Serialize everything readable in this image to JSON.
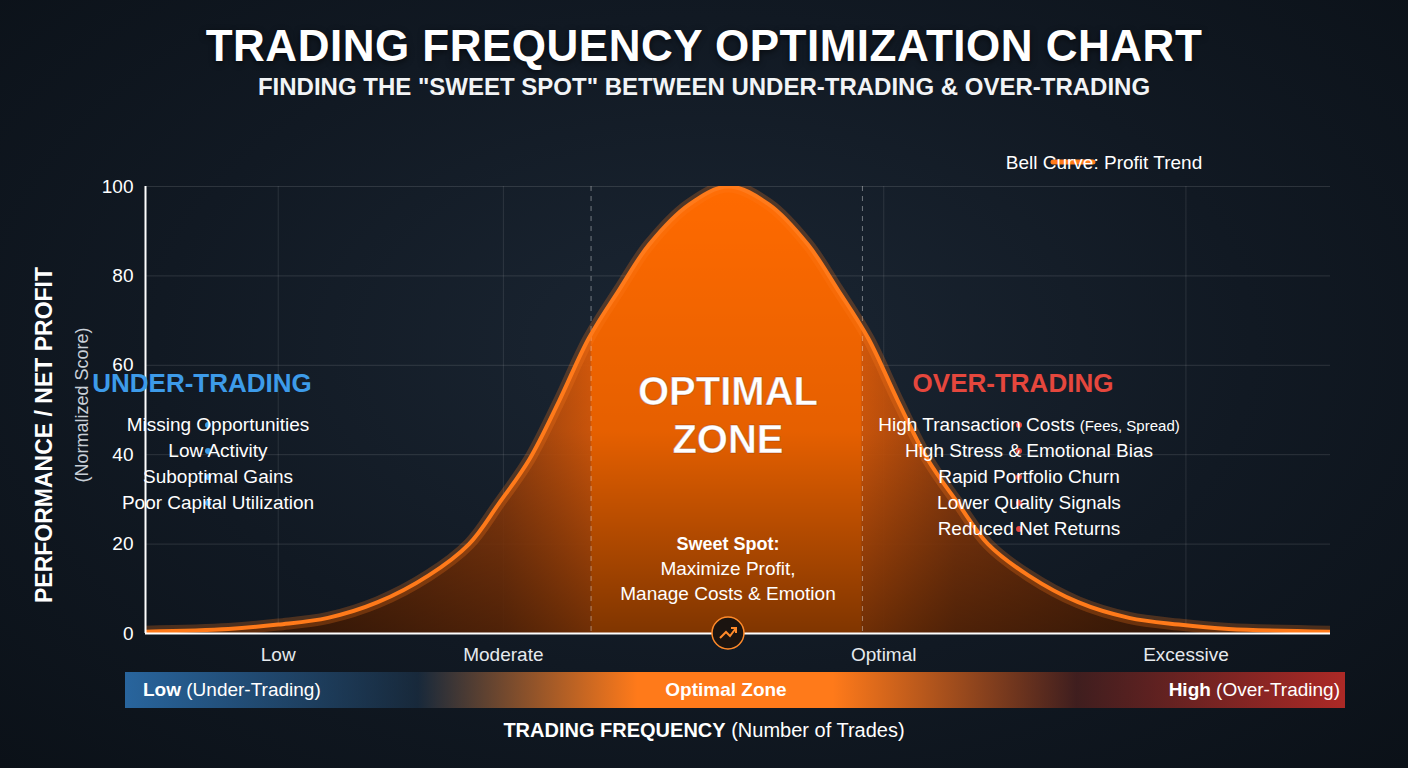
{
  "chart_data": {
    "type": "area",
    "title": "TRADING FREQUENCY OPTIMIZATION CHART",
    "subtitle": "FINDING THE \"SWEET SPOT\" BETWEEN UNDER-TRADING & OVER-TRADING",
    "xlabel": "TRADING FREQUENCY (Number of Trades)",
    "ylabel": "PERFORMANCE / NET PROFIT (Normalized Score)",
    "x": [
      0,
      7.0,
      11.2,
      15.4,
      19.6,
      23.9,
      27.3,
      29.8,
      32.4,
      34.9,
      37.4,
      40.0,
      42.5,
      45.9,
      49.2,
      52.6,
      55.9,
      58.4,
      61.0,
      63.5,
      66.0,
      68.6,
      71.1,
      74.5,
      78.7,
      83.0,
      87.2,
      91.4,
      100
    ],
    "series": [
      {
        "name": "Bell Curve: Profit Trend",
        "color": "#ff7a1a",
        "values": [
          0.4,
          1,
          2,
          3.5,
          7,
          13,
          20,
          29,
          39,
          52,
          66,
          77,
          87,
          96,
          100,
          96,
          87,
          77,
          66,
          52,
          39,
          29,
          20,
          13,
          7,
          3.5,
          2,
          1,
          0.4
        ]
      }
    ],
    "xlim": [
      0,
      100
    ],
    "ylim": [
      0,
      100
    ],
    "xticks": [
      {
        "value": 11.2,
        "label": "Low"
      },
      {
        "value": 30.2,
        "label": "Moderate"
      },
      {
        "value": 62.3,
        "label": "Optimal"
      },
      {
        "value": 87.8,
        "label": "Excessive"
      }
    ],
    "yticks": [
      0,
      20,
      40,
      60,
      80,
      100
    ],
    "grid": true,
    "legend": "top-right",
    "optimal_zone": [
      37.6,
      60.5
    ],
    "annotations": {
      "under": {
        "title": "UNDER-TRADING",
        "color": "#3d9be9",
        "items": [
          "Missing Opportunities",
          "Low Activity",
          "Suboptimal Gains",
          "Poor Capital Utilization"
        ]
      },
      "optimal": {
        "title": "OPTIMAL ZONE",
        "note_title": "Sweet Spot:",
        "note": "Maximize Profit, Manage Costs & Emotion"
      },
      "over": {
        "title": "OVER-TRADING",
        "color": "#e5473d",
        "items": [
          "High Transaction Costs (Fees, Spread)",
          "High Stress & Emotional Bias",
          "Rapid Portfolio Churn",
          "Lower Quality Signals",
          "Reduced Net Returns"
        ]
      }
    },
    "frequency_band": {
      "low": "Low (Under-Trading)",
      "mid": "Optimal Zone",
      "high": "High (Over-Trading)"
    }
  }
}
